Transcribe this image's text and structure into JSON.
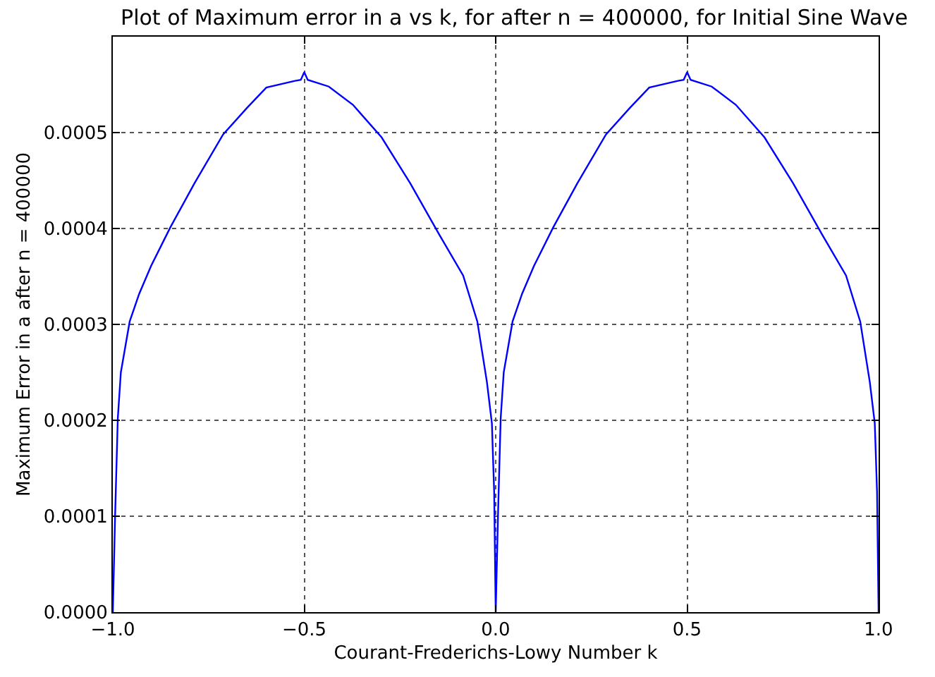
{
  "chart_data": {
    "type": "line",
    "title": "Plot of Maximum error in a vs k, for after n = 400000, for Initial Sine Wave",
    "xlabel": "Courant-Frederichs-Lowy Number k",
    "ylabel": "Maximum Error in a after n = 400000",
    "x": [
      -1.0,
      -0.994,
      -0.987,
      -0.979,
      -0.956,
      -0.931,
      -0.9,
      -0.85,
      -0.787,
      -0.712,
      -0.649,
      -0.599,
      -0.524,
      -0.509,
      -0.5,
      -0.491,
      -0.436,
      -0.373,
      -0.298,
      -0.223,
      -0.148,
      -0.085,
      -0.048,
      -0.023,
      -0.01,
      -0.004,
      0.0,
      0.006,
      0.013,
      0.021,
      0.044,
      0.069,
      0.1,
      0.15,
      0.213,
      0.288,
      0.351,
      0.401,
      0.476,
      0.491,
      0.5,
      0.509,
      0.564,
      0.627,
      0.702,
      0.777,
      0.852,
      0.915,
      0.952,
      0.977,
      0.99,
      0.996,
      1.0
    ],
    "series": [
      {
        "color": "#0000ff",
        "values": [
          0,
          0.000101,
          0.000202,
          0.00025,
          0.000303,
          0.000332,
          0.000361,
          0.000401,
          0.000447,
          0.000498,
          0.000526,
          0.000547,
          0.000554,
          0.000555,
          0.000563,
          0.000555,
          0.000548,
          0.000529,
          0.000495,
          0.000447,
          0.000394,
          0.000351,
          0.000303,
          0.00024,
          0.000197,
          0.000125,
          0,
          0.000101,
          0.000202,
          0.00025,
          0.000303,
          0.000332,
          0.000361,
          0.000401,
          0.000447,
          0.000498,
          0.000526,
          0.000547,
          0.000554,
          0.000555,
          0.000563,
          0.000555,
          0.000548,
          0.000529,
          0.000495,
          0.000447,
          0.000394,
          0.000351,
          0.000303,
          0.00024,
          0.000197,
          0.000125,
          0
        ]
      }
    ],
    "xlim": [
      -1.0,
      1.0
    ],
    "xticks": [
      {
        "value": -1.0,
        "label": "−1.0"
      },
      {
        "value": -0.5,
        "label": "−0.5"
      },
      {
        "value": 0.0,
        "label": "0.0"
      },
      {
        "value": 0.5,
        "label": "0.5"
      },
      {
        "value": 1.0,
        "label": "1.0"
      }
    ],
    "ylim": [
      0,
      0.0006
    ],
    "yticks": [
      {
        "value": 0,
        "label": "0.0000"
      },
      0.0001,
      0.0002,
      0.0003,
      0.0004,
      0.0005
    ],
    "grid": true,
    "line_style": "solid",
    "marker": "none"
  }
}
